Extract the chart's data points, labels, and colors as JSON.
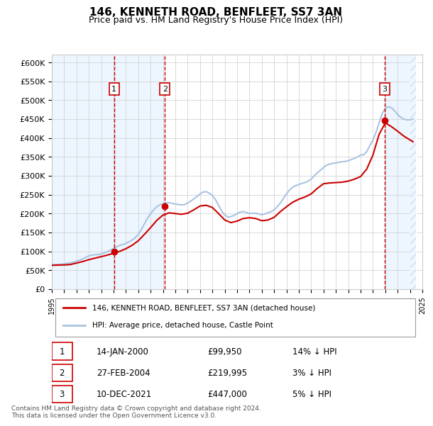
{
  "title": "146, KENNETH ROAD, BENFLEET, SS7 3AN",
  "subtitle": "Price paid vs. HM Land Registry's House Price Index (HPI)",
  "ylabel": "",
  "ylim": [
    0,
    620000
  ],
  "yticks": [
    0,
    50000,
    100000,
    150000,
    200000,
    250000,
    300000,
    350000,
    400000,
    450000,
    500000,
    550000,
    600000
  ],
  "ytick_labels": [
    "£0",
    "£50K",
    "£100K",
    "£150K",
    "£200K",
    "£250K",
    "£300K",
    "£350K",
    "£400K",
    "£450K",
    "£500K",
    "£550K",
    "£600K"
  ],
  "background_color": "#ffffff",
  "plot_bg_color": "#ffffff",
  "grid_color": "#cccccc",
  "hpi_color": "#aac4e0",
  "price_color": "#cc0000",
  "transaction_color": "#cc0000",
  "dashed_line_color": "#cc0000",
  "shade_color": "#ddeeff",
  "transactions": [
    {
      "date": "2000-01-14",
      "price": 99950,
      "label": "1"
    },
    {
      "date": "2004-02-27",
      "price": 219995,
      "label": "2"
    },
    {
      "date": "2021-12-10",
      "price": 447000,
      "label": "3"
    }
  ],
  "transaction_table": [
    {
      "num": "1",
      "date": "14-JAN-2000",
      "price": "£99,950",
      "hpi": "14% ↓ HPI"
    },
    {
      "num": "2",
      "date": "27-FEB-2004",
      "price": "£219,995",
      "hpi": "3% ↓ HPI"
    },
    {
      "num": "3",
      "date": "10-DEC-2021",
      "price": "£447,000",
      "hpi": "5% ↓ HPI"
    }
  ],
  "legend_line1": "146, KENNETH ROAD, BENFLEET, SS7 3AN (detached house)",
  "legend_line2": "HPI: Average price, detached house, Castle Point",
  "footer": "Contains HM Land Registry data © Crown copyright and database right 2024.\nThis data is licensed under the Open Government Licence v3.0.",
  "hpi_data": {
    "dates": [
      1995.0,
      1995.25,
      1995.5,
      1995.75,
      1996.0,
      1996.25,
      1996.5,
      1996.75,
      1997.0,
      1997.25,
      1997.5,
      1997.75,
      1998.0,
      1998.25,
      1998.5,
      1998.75,
      1999.0,
      1999.25,
      1999.5,
      1999.75,
      2000.0,
      2000.25,
      2000.5,
      2000.75,
      2001.0,
      2001.25,
      2001.5,
      2001.75,
      2002.0,
      2002.25,
      2002.5,
      2002.75,
      2003.0,
      2003.25,
      2003.5,
      2003.75,
      2004.0,
      2004.25,
      2004.5,
      2004.75,
      2005.0,
      2005.25,
      2005.5,
      2005.75,
      2006.0,
      2006.25,
      2006.5,
      2006.75,
      2007.0,
      2007.25,
      2007.5,
      2007.75,
      2008.0,
      2008.25,
      2008.5,
      2008.75,
      2009.0,
      2009.25,
      2009.5,
      2009.75,
      2010.0,
      2010.25,
      2010.5,
      2010.75,
      2011.0,
      2011.25,
      2011.5,
      2011.75,
      2012.0,
      2012.25,
      2012.5,
      2012.75,
      2013.0,
      2013.25,
      2013.5,
      2013.75,
      2014.0,
      2014.25,
      2014.5,
      2014.75,
      2015.0,
      2015.25,
      2015.5,
      2015.75,
      2016.0,
      2016.25,
      2016.5,
      2016.75,
      2017.0,
      2017.25,
      2017.5,
      2017.75,
      2018.0,
      2018.25,
      2018.5,
      2018.75,
      2019.0,
      2019.25,
      2019.5,
      2019.75,
      2020.0,
      2020.25,
      2020.5,
      2020.75,
      2021.0,
      2021.25,
      2021.5,
      2021.75,
      2022.0,
      2022.25,
      2022.5,
      2022.75,
      2023.0,
      2023.25,
      2023.5,
      2023.75,
      2024.0,
      2024.25
    ],
    "values": [
      66000,
      65000,
      65500,
      66000,
      67000,
      68000,
      69500,
      71000,
      74000,
      77000,
      80000,
      84000,
      88000,
      90000,
      91000,
      91500,
      93000,
      96000,
      99000,
      103000,
      108000,
      112000,
      116000,
      118000,
      121000,
      125000,
      130000,
      136000,
      145000,
      158000,
      173000,
      188000,
      200000,
      210000,
      218000,
      223000,
      226000,
      228000,
      229000,
      227000,
      225000,
      224000,
      223000,
      224000,
      228000,
      233000,
      239000,
      245000,
      252000,
      257000,
      258000,
      254000,
      248000,
      237000,
      222000,
      207000,
      196000,
      191000,
      192000,
      195000,
      200000,
      204000,
      205000,
      203000,
      200000,
      201000,
      201000,
      199000,
      197000,
      199000,
      202000,
      205000,
      210000,
      218000,
      228000,
      240000,
      252000,
      262000,
      270000,
      274000,
      277000,
      280000,
      282000,
      286000,
      291000,
      300000,
      308000,
      315000,
      322000,
      328000,
      331000,
      333000,
      334000,
      336000,
      337000,
      338000,
      340000,
      343000,
      346000,
      350000,
      355000,
      356000,
      364000,
      380000,
      395000,
      415000,
      440000,
      465000,
      478000,
      483000,
      480000,
      472000,
      462000,
      455000,
      450000,
      448000,
      448000,
      450000
    ]
  },
  "price_data": {
    "dates": [
      1995.0,
      1995.5,
      1996.0,
      1996.5,
      1997.0,
      1997.5,
      1998.0,
      1998.5,
      1999.0,
      1999.5,
      2000.0,
      2000.5,
      2001.0,
      2001.5,
      2002.0,
      2002.5,
      2003.0,
      2003.5,
      2004.0,
      2004.5,
      2005.0,
      2005.5,
      2006.0,
      2006.5,
      2007.0,
      2007.5,
      2008.0,
      2008.5,
      2009.0,
      2009.5,
      2010.0,
      2010.5,
      2011.0,
      2011.5,
      2012.0,
      2012.5,
      2013.0,
      2013.5,
      2014.0,
      2014.5,
      2015.0,
      2015.5,
      2016.0,
      2016.5,
      2017.0,
      2017.5,
      2018.0,
      2018.5,
      2019.0,
      2019.5,
      2020.0,
      2020.5,
      2021.0,
      2021.5,
      2022.0,
      2022.5,
      2023.0,
      2023.5,
      2024.0,
      2024.25
    ],
    "values": [
      63000,
      63500,
      64000,
      65000,
      69000,
      73000,
      78000,
      82000,
      86000,
      90000,
      95000,
      100000,
      107000,
      116000,
      128000,
      145000,
      163000,
      182000,
      196000,
      202000,
      200000,
      198000,
      201000,
      210000,
      220000,
      222000,
      216000,
      200000,
      183000,
      176000,
      180000,
      187000,
      189000,
      187000,
      181000,
      183000,
      190000,
      205000,
      218000,
      230000,
      238000,
      244000,
      252000,
      267000,
      279000,
      281000,
      282000,
      283000,
      286000,
      291000,
      298000,
      318000,
      355000,
      410000,
      440000,
      430000,
      418000,
      405000,
      395000,
      390000
    ]
  }
}
